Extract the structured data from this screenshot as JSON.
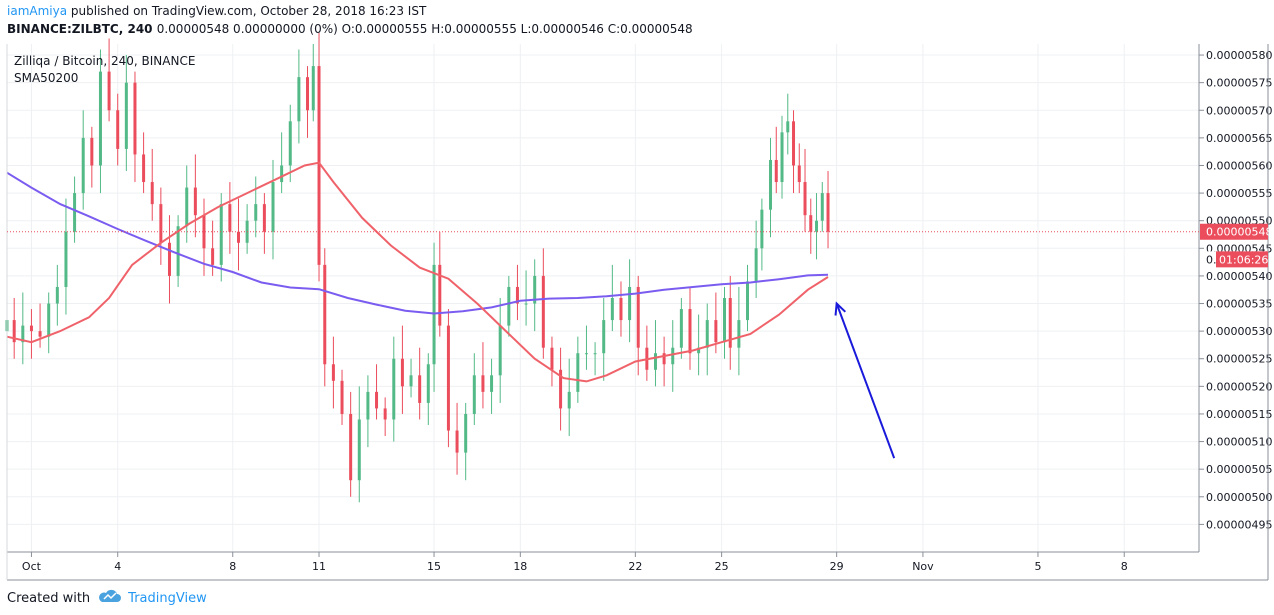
{
  "header": {
    "user": "iamAmiya",
    "published": "published on TradingView.com, October 28, 2018 16:23 IST",
    "symbol": "BINANCE:ZILBTC, 240",
    "ohlc": "0.00000548 0.00000000 (0%) O:0.00000555 H:0.00000555 L:0.00000546 C:0.00000548"
  },
  "footer": {
    "created_with": "Created with",
    "brand": "TradingView"
  },
  "colors": {
    "up": "#53b987",
    "down": "#eb4d5c",
    "sma_blue": "#7b5cf0",
    "sma_red": "#f0626a",
    "arrow": "#1a1adb",
    "grid": "#eef0f3",
    "axis": "#8a8f98",
    "price_tag": "#eb4d5c"
  },
  "chart_data": {
    "type": "candlestick",
    "title": "Zilliqa / Bitcoin, 240, BINANCE",
    "indicator_label": "SMA50200",
    "ylim": [
      4.9e-06,
      5.82e-06
    ],
    "y_ticks": [
      "0.00000580",
      "0.00000575",
      "0.00000570",
      "0.00000565",
      "0.00000560",
      "0.00000555",
      "0.00000550",
      "0.00000545",
      "0.00000540",
      "0.00000535",
      "0.00000530",
      "0.00000525",
      "0.00000520",
      "0.00000515",
      "0.00000510",
      "0.00000505",
      "0.00000500",
      "0.00000495"
    ],
    "x_ticks": [
      {
        "label": "Oct",
        "day": 1
      },
      {
        "label": "4",
        "day": 4
      },
      {
        "label": "8",
        "day": 8
      },
      {
        "label": "11",
        "day": 11
      },
      {
        "label": "15",
        "day": 15
      },
      {
        "label": "18",
        "day": 18
      },
      {
        "label": "22",
        "day": 22
      },
      {
        "label": "25",
        "day": 25
      },
      {
        "label": "29",
        "day": 29
      },
      {
        "label": "Nov",
        "day": 32
      },
      {
        "label": "5",
        "day": 36
      },
      {
        "label": "8",
        "day": 39
      }
    ],
    "x_range_days": [
      0.15,
      41.6
    ],
    "last_price": {
      "value": 5.48e-06,
      "label": "0.00000548"
    },
    "countdown": {
      "value": 5.43e-06,
      "label": "01:06:26",
      "prefix": "0."
    },
    "closes": [
      [
        0.15,
        532
      ],
      [
        0.4,
        528
      ],
      [
        0.7,
        531
      ],
      [
        1.0,
        530
      ],
      [
        1.3,
        529
      ],
      [
        1.6,
        535
      ],
      [
        1.9,
        538
      ],
      [
        2.2,
        548
      ],
      [
        2.5,
        555
      ],
      [
        2.8,
        565
      ],
      [
        3.1,
        560
      ],
      [
        3.4,
        577
      ],
      [
        3.7,
        570
      ],
      [
        4.0,
        563
      ],
      [
        4.3,
        575
      ],
      [
        4.6,
        562
      ],
      [
        4.9,
        557
      ],
      [
        5.2,
        553
      ],
      [
        5.5,
        546
      ],
      [
        5.8,
        540
      ],
      [
        6.1,
        549
      ],
      [
        6.4,
        556
      ],
      [
        6.7,
        551
      ],
      [
        7.0,
        545
      ],
      [
        7.3,
        542
      ],
      [
        7.6,
        553
      ],
      [
        7.9,
        548
      ],
      [
        8.2,
        546
      ],
      [
        8.5,
        550
      ],
      [
        8.8,
        553
      ],
      [
        9.1,
        548
      ],
      [
        9.4,
        557
      ],
      [
        9.7,
        560
      ],
      [
        10.0,
        568
      ],
      [
        10.3,
        576
      ],
      [
        10.6,
        570
      ],
      [
        10.8,
        578
      ],
      [
        11.0,
        542
      ],
      [
        11.2,
        524
      ],
      [
        11.5,
        521
      ],
      [
        11.8,
        515
      ],
      [
        12.1,
        503
      ],
      [
        12.4,
        514
      ],
      [
        12.7,
        519
      ],
      [
        13.0,
        516
      ],
      [
        13.3,
        514
      ],
      [
        13.6,
        525
      ],
      [
        13.9,
        520
      ],
      [
        14.2,
        522
      ],
      [
        14.5,
        517
      ],
      [
        14.8,
        524
      ],
      [
        15.0,
        542
      ],
      [
        15.2,
        531
      ],
      [
        15.5,
        512
      ],
      [
        15.8,
        508
      ],
      [
        16.1,
        515
      ],
      [
        16.4,
        522
      ],
      [
        16.7,
        519
      ],
      [
        17.0,
        522
      ],
      [
        17.3,
        531
      ],
      [
        17.6,
        538
      ],
      [
        17.9,
        535
      ],
      [
        18.2,
        535
      ],
      [
        18.5,
        540
      ],
      [
        18.8,
        527
      ],
      [
        19.1,
        523
      ],
      [
        19.4,
        516
      ],
      [
        19.7,
        519
      ],
      [
        20.0,
        526
      ],
      [
        20.3,
        526
      ],
      [
        20.6,
        526
      ],
      [
        20.9,
        532
      ],
      [
        21.2,
        536
      ],
      [
        21.5,
        532
      ],
      [
        21.8,
        538
      ],
      [
        22.1,
        527
      ],
      [
        22.4,
        523
      ],
      [
        22.7,
        526
      ],
      [
        23.0,
        524
      ],
      [
        23.3,
        527
      ],
      [
        23.6,
        534
      ],
      [
        23.9,
        526
      ],
      [
        24.2,
        527
      ],
      [
        24.5,
        532
      ],
      [
        24.8,
        528
      ],
      [
        25.1,
        536
      ],
      [
        25.3,
        527
      ],
      [
        25.6,
        532
      ],
      [
        25.9,
        539
      ],
      [
        26.2,
        545
      ],
      [
        26.4,
        552
      ],
      [
        26.7,
        561
      ],
      [
        26.9,
        557
      ],
      [
        27.1,
        566
      ],
      [
        27.3,
        568
      ],
      [
        27.5,
        560
      ],
      [
        27.7,
        557
      ],
      [
        27.9,
        551
      ],
      [
        28.1,
        548
      ],
      [
        28.3,
        550
      ],
      [
        28.5,
        555
      ],
      [
        28.7,
        548
      ]
    ],
    "series": [
      {
        "name": "SMA 200",
        "color": "#7b5cf0",
        "points": [
          [
            0.15,
            558.7
          ],
          [
            1.0,
            556
          ],
          [
            2.0,
            553
          ],
          [
            3.0,
            550.8
          ],
          [
            4.0,
            548.5
          ],
          [
            5.0,
            546.3
          ],
          [
            6.0,
            544.2
          ],
          [
            7.0,
            542.2
          ],
          [
            8.0,
            540.7
          ],
          [
            9.0,
            538.8
          ],
          [
            10.0,
            537.9
          ],
          [
            11.0,
            537.6
          ],
          [
            12.0,
            536
          ],
          [
            13.0,
            534.8
          ],
          [
            14.0,
            533.7
          ],
          [
            15.0,
            533.2
          ],
          [
            16.0,
            533.6
          ],
          [
            17.0,
            534.3
          ],
          [
            18.0,
            535.5
          ],
          [
            19.0,
            535.9
          ],
          [
            20.0,
            536
          ],
          [
            21.0,
            536.3
          ],
          [
            22.0,
            536.8
          ],
          [
            23.0,
            537.5
          ],
          [
            24.0,
            538
          ],
          [
            25.0,
            538.5
          ],
          [
            26.0,
            538.8
          ],
          [
            27.0,
            539.4
          ],
          [
            28.0,
            540.1
          ],
          [
            28.7,
            540.2
          ]
        ]
      },
      {
        "name": "SMA 50",
        "color": "#f0626a",
        "points": [
          [
            0.15,
            529
          ],
          [
            1.0,
            528
          ],
          [
            2.0,
            530
          ],
          [
            3.0,
            532.5
          ],
          [
            3.7,
            536
          ],
          [
            4.5,
            542
          ],
          [
            5.5,
            546
          ],
          [
            6.5,
            549.5
          ],
          [
            7.5,
            552.5
          ],
          [
            8.5,
            555
          ],
          [
            9.5,
            557.5
          ],
          [
            10.5,
            560
          ],
          [
            11.0,
            560.5
          ],
          [
            11.5,
            557
          ],
          [
            12.5,
            550.5
          ],
          [
            13.5,
            545.5
          ],
          [
            14.5,
            541.5
          ],
          [
            15.5,
            539.5
          ],
          [
            16.5,
            535
          ],
          [
            17.5,
            530
          ],
          [
            18.5,
            525
          ],
          [
            19.5,
            521.5
          ],
          [
            20.3,
            520.9
          ],
          [
            21.0,
            522
          ],
          [
            22.0,
            524.5
          ],
          [
            23.0,
            525.5
          ],
          [
            24.0,
            526.5
          ],
          [
            25.0,
            528
          ],
          [
            26.0,
            529.5
          ],
          [
            27.0,
            533
          ],
          [
            28.0,
            537.5
          ],
          [
            28.7,
            539.8
          ]
        ]
      }
    ],
    "annotation": {
      "type": "arrow",
      "from": [
        31.0,
        5.07e-06
      ],
      "to": [
        29.0,
        5.35e-06
      ]
    }
  }
}
